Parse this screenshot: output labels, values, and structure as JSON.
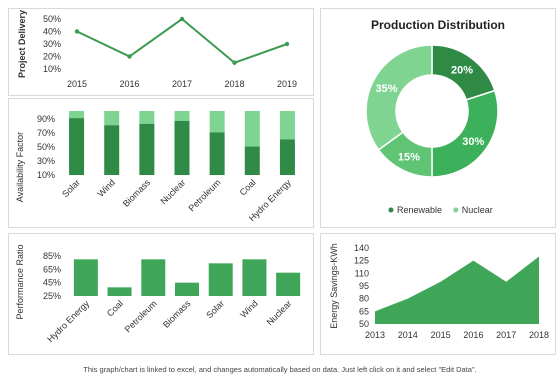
{
  "colors": {
    "dark": "#2f8a45",
    "mid": "#3cb05a",
    "light": "#7fd491",
    "line": "#3e9a52",
    "area": "#3fa659"
  },
  "chart_data": [
    {
      "id": "delivery",
      "type": "line",
      "ylabel": "Project Delivery",
      "x": [
        "2015",
        "2016",
        "2017",
        "2018",
        "2019"
      ],
      "values": [
        40,
        20,
        50,
        15,
        30
      ],
      "yticks": [
        "50%",
        "40%",
        "30%",
        "20%",
        "10%"
      ],
      "ylim": [
        10,
        50
      ]
    },
    {
      "id": "availability",
      "type": "bar",
      "ylabel": "Availability Factor",
      "categories": [
        "Solar",
        "Wind",
        "Biomass",
        "Nuclear",
        "Petroleum",
        "Coal",
        "Hydro Energy"
      ],
      "series": [
        {
          "values": [
            90,
            80,
            82,
            86,
            70,
            50,
            60
          ]
        },
        {
          "values": [
            100,
            100,
            100,
            100,
            100,
            100,
            100
          ]
        }
      ],
      "yticks": [
        "90%",
        "70%",
        "50%",
        "30%",
        "10%"
      ],
      "ylim": [
        10,
        100
      ]
    },
    {
      "id": "production",
      "type": "pie",
      "title": "Production Distribution",
      "slices": [
        {
          "label": "20%",
          "value": 20,
          "color": "#2f8a45"
        },
        {
          "label": "30%",
          "value": 30,
          "color": "#3cb05a"
        },
        {
          "label": "15%",
          "value": 15,
          "color": "#5fc474"
        },
        {
          "label": "35%",
          "value": 35,
          "color": "#7fd491"
        }
      ],
      "legend": [
        {
          "name": "Renewable",
          "color": "#2f8a45"
        },
        {
          "name": "Nuclear",
          "color": "#7fd491"
        }
      ],
      "legend_position": "bottom"
    },
    {
      "id": "performance",
      "type": "bar",
      "ylabel": "Performance Ratio",
      "categories": [
        "Hydro Energy",
        "Coal",
        "Petroleum",
        "Biomass",
        "Solar",
        "Wind",
        "Nuclear"
      ],
      "values": [
        80,
        38,
        80,
        45,
        74,
        80,
        60
      ],
      "yticks": [
        "85%",
        "65%",
        "45%",
        "25%"
      ],
      "ylim": [
        25,
        85
      ]
    },
    {
      "id": "savings",
      "type": "area",
      "ylabel": "Energy Savings-KWh",
      "x": [
        "2013",
        "2014",
        "2015",
        "2016",
        "2017",
        "2018"
      ],
      "values": [
        65,
        80,
        100,
        125,
        100,
        130
      ],
      "yticks": [
        "140",
        "125",
        "110",
        "95",
        "80",
        "65",
        "50"
      ],
      "ylim": [
        50,
        140
      ]
    }
  ],
  "footer": "This graph/chart is linked to excel, and changes automatically based on data. Just left click on it and select \"Edit Data\"."
}
